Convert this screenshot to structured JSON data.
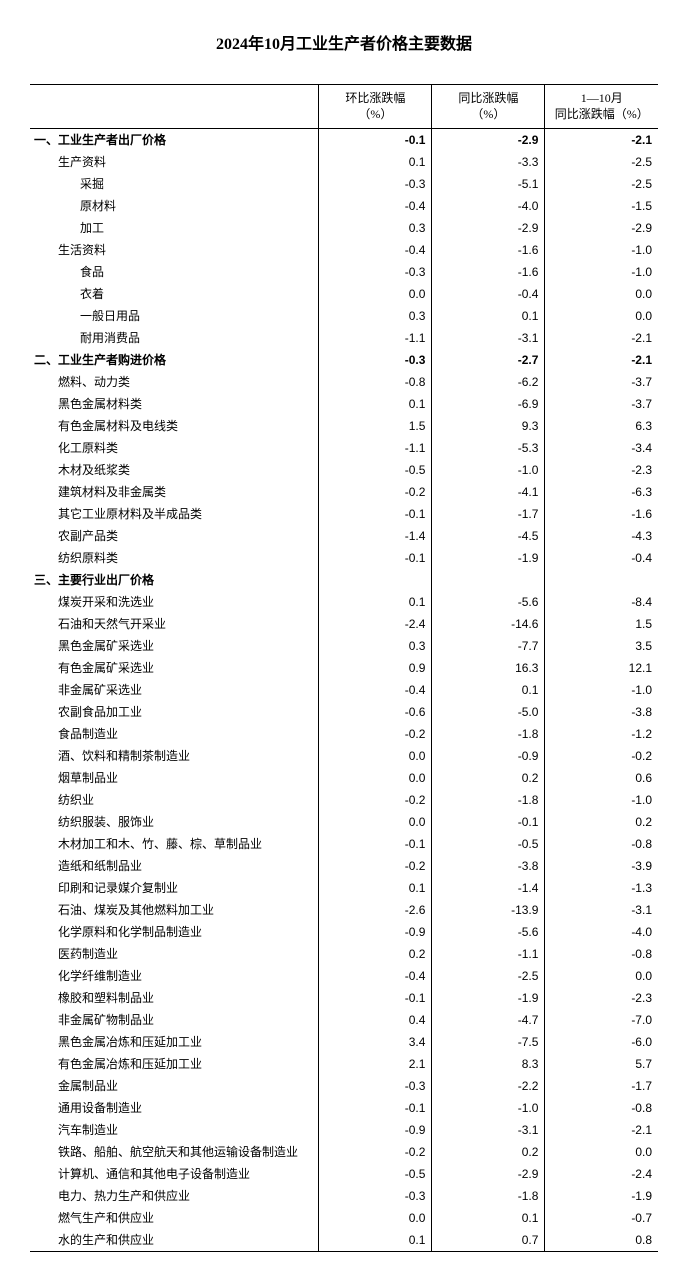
{
  "title": "2024年10月工业生产者价格主要数据",
  "columns": [
    "",
    "环比涨跌幅\n（%）",
    "同比涨跌幅\n（%）",
    "1—10月\n同比涨跌幅（%）"
  ],
  "col_widths": [
    "46%",
    "18%",
    "18%",
    "18%"
  ],
  "rows": [
    {
      "label": "一、工业生产者出厂价格",
      "indent": 0,
      "bold": true,
      "mom": "-0.1",
      "yoy": "-2.9",
      "ytd": "-2.1"
    },
    {
      "label": "生产资料",
      "indent": 1,
      "mom": "0.1",
      "yoy": "-3.3",
      "ytd": "-2.5"
    },
    {
      "label": "采掘",
      "indent": 2,
      "mom": "-0.3",
      "yoy": "-5.1",
      "ytd": "-2.5"
    },
    {
      "label": "原材料",
      "indent": 2,
      "mom": "-0.4",
      "yoy": "-4.0",
      "ytd": "-1.5"
    },
    {
      "label": "加工",
      "indent": 2,
      "mom": "0.3",
      "yoy": "-2.9",
      "ytd": "-2.9"
    },
    {
      "label": "生活资料",
      "indent": 1,
      "mom": "-0.4",
      "yoy": "-1.6",
      "ytd": "-1.0"
    },
    {
      "label": "食品",
      "indent": 2,
      "mom": "-0.3",
      "yoy": "-1.6",
      "ytd": "-1.0"
    },
    {
      "label": "衣着",
      "indent": 2,
      "mom": "0.0",
      "yoy": "-0.4",
      "ytd": "0.0"
    },
    {
      "label": "一般日用品",
      "indent": 2,
      "mom": "0.3",
      "yoy": "0.1",
      "ytd": "0.0"
    },
    {
      "label": "耐用消费品",
      "indent": 2,
      "mom": "-1.1",
      "yoy": "-3.1",
      "ytd": "-2.1"
    },
    {
      "label": "二、工业生产者购进价格",
      "indent": 0,
      "bold": true,
      "mom": "-0.3",
      "yoy": "-2.7",
      "ytd": "-2.1"
    },
    {
      "label": "燃料、动力类",
      "indent": 1,
      "mom": "-0.8",
      "yoy": "-6.2",
      "ytd": "-3.7"
    },
    {
      "label": "黑色金属材料类",
      "indent": 1,
      "mom": "0.1",
      "yoy": "-6.9",
      "ytd": "-3.7"
    },
    {
      "label": "有色金属材料及电线类",
      "indent": 1,
      "mom": "1.5",
      "yoy": "9.3",
      "ytd": "6.3"
    },
    {
      "label": "化工原料类",
      "indent": 1,
      "mom": "-1.1",
      "yoy": "-5.3",
      "ytd": "-3.4"
    },
    {
      "label": "木材及纸浆类",
      "indent": 1,
      "mom": "-0.5",
      "yoy": "-1.0",
      "ytd": "-2.3"
    },
    {
      "label": "建筑材料及非金属类",
      "indent": 1,
      "mom": "-0.2",
      "yoy": "-4.1",
      "ytd": "-6.3"
    },
    {
      "label": "其它工业原材料及半成品类",
      "indent": 1,
      "mom": "-0.1",
      "yoy": "-1.7",
      "ytd": "-1.6"
    },
    {
      "label": "农副产品类",
      "indent": 1,
      "mom": "-1.4",
      "yoy": "-4.5",
      "ytd": "-4.3"
    },
    {
      "label": "纺织原料类",
      "indent": 1,
      "mom": "-0.1",
      "yoy": "-1.9",
      "ytd": "-0.4"
    },
    {
      "label": "三、主要行业出厂价格",
      "indent": 0,
      "bold": true,
      "mom": "",
      "yoy": "",
      "ytd": ""
    },
    {
      "label": "煤炭开采和洗选业",
      "indent": 1,
      "mom": "0.1",
      "yoy": "-5.6",
      "ytd": "-8.4"
    },
    {
      "label": "石油和天然气开采业",
      "indent": 1,
      "mom": "-2.4",
      "yoy": "-14.6",
      "ytd": "1.5"
    },
    {
      "label": "黑色金属矿采选业",
      "indent": 1,
      "mom": "0.3",
      "yoy": "-7.7",
      "ytd": "3.5"
    },
    {
      "label": "有色金属矿采选业",
      "indent": 1,
      "mom": "0.9",
      "yoy": "16.3",
      "ytd": "12.1"
    },
    {
      "label": "非金属矿采选业",
      "indent": 1,
      "mom": "-0.4",
      "yoy": "0.1",
      "ytd": "-1.0"
    },
    {
      "label": "农副食品加工业",
      "indent": 1,
      "mom": "-0.6",
      "yoy": "-5.0",
      "ytd": "-3.8"
    },
    {
      "label": "食品制造业",
      "indent": 1,
      "mom": "-0.2",
      "yoy": "-1.8",
      "ytd": "-1.2"
    },
    {
      "label": "酒、饮料和精制茶制造业",
      "indent": 1,
      "mom": "0.0",
      "yoy": "-0.9",
      "ytd": "-0.2"
    },
    {
      "label": "烟草制品业",
      "indent": 1,
      "mom": "0.0",
      "yoy": "0.2",
      "ytd": "0.6"
    },
    {
      "label": "纺织业",
      "indent": 1,
      "mom": "-0.2",
      "yoy": "-1.8",
      "ytd": "-1.0"
    },
    {
      "label": "纺织服装、服饰业",
      "indent": 1,
      "mom": "0.0",
      "yoy": "-0.1",
      "ytd": "0.2"
    },
    {
      "label": "木材加工和木、竹、藤、棕、草制品业",
      "indent": 1,
      "mom": "-0.1",
      "yoy": "-0.5",
      "ytd": "-0.8"
    },
    {
      "label": "造纸和纸制品业",
      "indent": 1,
      "mom": "-0.2",
      "yoy": "-3.8",
      "ytd": "-3.9"
    },
    {
      "label": "印刷和记录媒介复制业",
      "indent": 1,
      "mom": "0.1",
      "yoy": "-1.4",
      "ytd": "-1.3"
    },
    {
      "label": "石油、煤炭及其他燃料加工业",
      "indent": 1,
      "mom": "-2.6",
      "yoy": "-13.9",
      "ytd": "-3.1"
    },
    {
      "label": "化学原料和化学制品制造业",
      "indent": 1,
      "mom": "-0.9",
      "yoy": "-5.6",
      "ytd": "-4.0"
    },
    {
      "label": "医药制造业",
      "indent": 1,
      "mom": "0.2",
      "yoy": "-1.1",
      "ytd": "-0.8"
    },
    {
      "label": "化学纤维制造业",
      "indent": 1,
      "mom": "-0.4",
      "yoy": "-2.5",
      "ytd": "0.0"
    },
    {
      "label": "橡胶和塑料制品业",
      "indent": 1,
      "mom": "-0.1",
      "yoy": "-1.9",
      "ytd": "-2.3"
    },
    {
      "label": "非金属矿物制品业",
      "indent": 1,
      "mom": "0.4",
      "yoy": "-4.7",
      "ytd": "-7.0"
    },
    {
      "label": "黑色金属冶炼和压延加工业",
      "indent": 1,
      "mom": "3.4",
      "yoy": "-7.5",
      "ytd": "-6.0"
    },
    {
      "label": "有色金属冶炼和压延加工业",
      "indent": 1,
      "mom": "2.1",
      "yoy": "8.3",
      "ytd": "5.7"
    },
    {
      "label": "金属制品业",
      "indent": 1,
      "mom": "-0.3",
      "yoy": "-2.2",
      "ytd": "-1.7"
    },
    {
      "label": "通用设备制造业",
      "indent": 1,
      "mom": "-0.1",
      "yoy": "-1.0",
      "ytd": "-0.8"
    },
    {
      "label": "汽车制造业",
      "indent": 1,
      "mom": "-0.9",
      "yoy": "-3.1",
      "ytd": "-2.1"
    },
    {
      "label": "铁路、船舶、航空航天和其他运输设备制造业",
      "indent": 1,
      "mom": "-0.2",
      "yoy": "0.2",
      "ytd": "0.0"
    },
    {
      "label": "计算机、通信和其他电子设备制造业",
      "indent": 1,
      "mom": "-0.5",
      "yoy": "-2.9",
      "ytd": "-2.4"
    },
    {
      "label": "电力、热力生产和供应业",
      "indent": 1,
      "mom": "-0.3",
      "yoy": "-1.8",
      "ytd": "-1.9"
    },
    {
      "label": "燃气生产和供应业",
      "indent": 1,
      "mom": "0.0",
      "yoy": "0.1",
      "ytd": "-0.7"
    },
    {
      "label": "水的生产和供应业",
      "indent": 1,
      "mom": "0.1",
      "yoy": "0.7",
      "ytd": "0.8"
    }
  ]
}
